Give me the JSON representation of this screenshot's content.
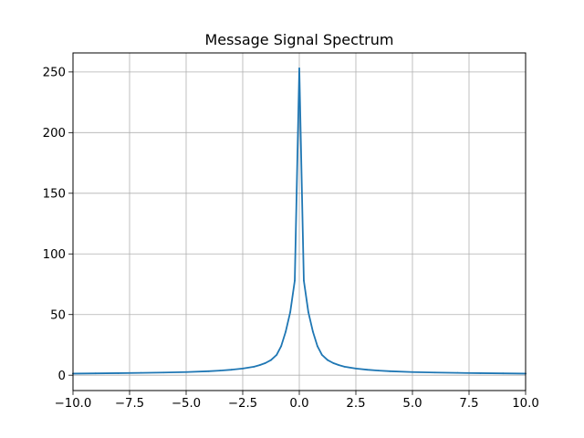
{
  "chart_data": {
    "type": "line",
    "title": "Message Signal Spectrum",
    "xlabel": "",
    "ylabel": "",
    "xlim": [
      -10,
      10
    ],
    "ylim": [
      -12.65,
      265.7
    ],
    "x_ticks": [
      -10,
      -7.5,
      -5,
      -2.5,
      0,
      2.5,
      5,
      7.5,
      10
    ],
    "x_tick_labels": [
      "−10.0",
      "−7.5",
      "−5.0",
      "−2.5",
      "0.0",
      "2.5",
      "5.0",
      "7.5",
      "10.0"
    ],
    "y_ticks": [
      0,
      50,
      100,
      150,
      200,
      250
    ],
    "y_tick_labels": [
      "0",
      "50",
      "100",
      "150",
      "200",
      "250"
    ],
    "grid": true,
    "series": [
      {
        "color": "#1f77b4",
        "x": [
          -10,
          -9,
          -8,
          -7,
          -6,
          -5,
          -4,
          -3.5,
          -3,
          -2.5,
          -2,
          -1.75,
          -1.5,
          -1.25,
          -1,
          -0.8,
          -0.6,
          -0.4,
          -0.2,
          0,
          0.2,
          0.4,
          0.6,
          0.8,
          1,
          1.25,
          1.5,
          1.75,
          2,
          2.5,
          3,
          3.5,
          4,
          5,
          6,
          7,
          8,
          9,
          10
        ],
        "y": [
          1.3,
          1.5,
          1.7,
          1.9,
          2.2,
          2.6,
          3.3,
          3.8,
          4.5,
          5.5,
          7.0,
          8.3,
          10.0,
          12.5,
          16.8,
          24.0,
          36.0,
          52.0,
          78.0,
          253.0,
          78.0,
          52.0,
          36.0,
          24.0,
          16.8,
          12.5,
          10.0,
          8.3,
          7.0,
          5.5,
          4.5,
          3.8,
          3.3,
          2.6,
          2.2,
          1.9,
          1.7,
          1.5,
          1.3
        ]
      }
    ]
  }
}
